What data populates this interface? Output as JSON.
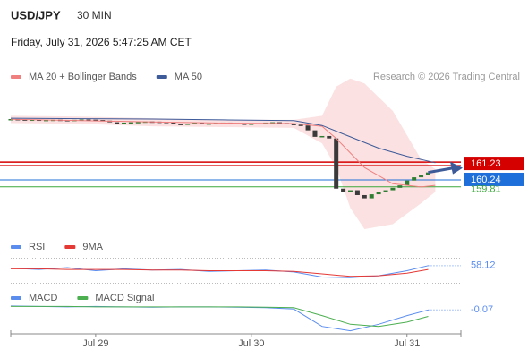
{
  "header": {
    "symbol": "USD/JPY",
    "interval": "30 MIN",
    "timestamp": "Friday, July 31, 2026 5:47:25 AM CET",
    "credit": "Research © 2026 Trading Central"
  },
  "chart_data": [
    {
      "type": "candlestick",
      "x": [
        0,
        1,
        2,
        3,
        4,
        5,
        6,
        7,
        8,
        9,
        10,
        11,
        12,
        13,
        14,
        15,
        16,
        17,
        18,
        19,
        20,
        21,
        22,
        23,
        24,
        25,
        26,
        27,
        28,
        29,
        30,
        31,
        32,
        33,
        34,
        35,
        36,
        37,
        38,
        39,
        40,
        41,
        42,
        43,
        44,
        45,
        46,
        47,
        48,
        49,
        50,
        51,
        52,
        53,
        54,
        55,
        56,
        57,
        58,
        59
      ],
      "values": [
        164.0,
        163.98,
        163.95,
        163.97,
        163.93,
        163.95,
        163.96,
        163.94,
        163.92,
        163.95,
        163.97,
        163.96,
        163.94,
        163.9,
        163.8,
        163.75,
        163.78,
        163.8,
        163.82,
        163.85,
        163.84,
        163.83,
        163.8,
        163.7,
        163.68,
        163.72,
        163.75,
        163.7,
        163.73,
        163.76,
        163.78,
        163.75,
        163.72,
        163.7,
        163.72,
        163.75,
        163.78,
        163.8,
        163.76,
        163.7,
        163.65,
        163.6,
        163.3,
        162.9,
        162.95,
        162.8,
        159.7,
        159.5,
        159.6,
        159.3,
        159.1,
        159.35,
        159.5,
        159.6,
        159.75,
        159.9,
        160.2,
        160.4,
        160.55,
        160.7
      ],
      "up_color": "#2e7d32",
      "down_color": "#3a3a3a",
      "xlim": [
        0,
        64
      ],
      "ylim": [
        156.7,
        166.1
      ],
      "xticks": [
        {
          "value": 12,
          "label": "Jul 29"
        },
        {
          "value": 34,
          "label": "Jul 30"
        },
        {
          "value": 56,
          "label": "Jul 31"
        }
      ],
      "series": [
        {
          "name": "MA 20 + Bollinger Bands",
          "color": "#f08080",
          "x": [
            0,
            10,
            20,
            30,
            40,
            44,
            46,
            50,
            54,
            58,
            60
          ],
          "values": [
            163.98,
            163.9,
            163.82,
            163.75,
            163.72,
            163.55,
            162.8,
            161.0,
            160.0,
            159.8,
            159.9
          ]
        },
        {
          "name": "MA 50",
          "color": "#3d5a99",
          "x": [
            0,
            10,
            20,
            30,
            40,
            44,
            48,
            52,
            56,
            60
          ],
          "values": [
            164.05,
            164.02,
            164.0,
            163.95,
            163.9,
            163.6,
            162.9,
            162.2,
            161.7,
            161.3
          ]
        }
      ],
      "bands": {
        "color": "#fadcdc",
        "x": [
          0,
          10,
          20,
          30,
          40,
          44,
          46,
          48,
          50,
          54,
          58,
          60
        ],
        "upper": [
          164.2,
          164.15,
          164.05,
          163.95,
          163.95,
          164.2,
          166.0,
          166.5,
          166.2,
          164.5,
          161.5,
          160.9
        ],
        "lower": [
          163.75,
          163.7,
          163.55,
          163.5,
          163.45,
          162.5,
          161.0,
          158.5,
          157.2,
          157.5,
          158.8,
          159.5
        ]
      },
      "levels": [
        {
          "value": 161.23,
          "color": "#d50000"
        },
        {
          "value": 160.24,
          "color": "#1e6fd9"
        },
        {
          "value": 159.81,
          "color": "#3aa83a"
        }
      ]
    },
    {
      "type": "line",
      "xlim": [
        0,
        64
      ],
      "ylim": [
        25,
        75
      ],
      "levels": [
        70,
        30
      ],
      "series": [
        {
          "name": "RSI",
          "color": "#5b8def",
          "x": [
            0,
            4,
            8,
            12,
            16,
            20,
            24,
            28,
            32,
            36,
            40,
            44,
            48,
            52,
            56,
            59
          ],
          "values": [
            54,
            52,
            55,
            50,
            53,
            51,
            52,
            49,
            50,
            51,
            48,
            40,
            39,
            42,
            50,
            58.12
          ]
        },
        {
          "name": "9MA",
          "color": "#e53935",
          "x": [
            0,
            4,
            8,
            12,
            16,
            20,
            24,
            28,
            32,
            36,
            40,
            44,
            48,
            52,
            56,
            59
          ],
          "values": [
            53,
            53,
            52,
            52,
            52,
            51,
            51,
            50,
            50,
            50,
            49,
            45,
            41,
            42,
            46,
            52
          ]
        }
      ]
    },
    {
      "type": "line",
      "xlim": [
        0,
        64
      ],
      "ylim": [
        -0.6,
        0.1
      ],
      "series": [
        {
          "name": "MACD",
          "color": "#5b8def",
          "x": [
            0,
            4,
            8,
            12,
            16,
            20,
            24,
            28,
            32,
            36,
            40,
            44,
            48,
            52,
            56,
            59
          ],
          "values": [
            0.02,
            0.01,
            0.0,
            0.01,
            0.0,
            -0.01,
            0,
            0,
            -0.01,
            -0.02,
            -0.05,
            -0.45,
            -0.55,
            -0.4,
            -0.2,
            -0.07
          ]
        },
        {
          "name": "MACD Signal",
          "color": "#4caf50",
          "x": [
            0,
            4,
            8,
            12,
            16,
            20,
            24,
            28,
            32,
            36,
            40,
            44,
            48,
            52,
            56,
            59
          ],
          "values": [
            0.01,
            0.01,
            0.01,
            0,
            0,
            0,
            0,
            0,
            0,
            -0.01,
            -0.02,
            -0.2,
            -0.4,
            -0.45,
            -0.35,
            -0.22
          ]
        }
      ]
    }
  ]
}
